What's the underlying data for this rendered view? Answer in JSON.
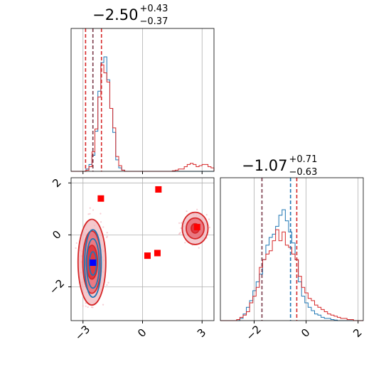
{
  "chart_data": [
    {
      "type": "histogram",
      "panel": "top-left",
      "title": {
        "main": "−2.50",
        "sup": "+0.43",
        "sub": "−0.37"
      },
      "xlim": [
        -3.6,
        3.6
      ],
      "grid": true,
      "colors": {
        "a": "#1f77b4",
        "b": "#d62728",
        "dashed_overlap": "#7a3a4a"
      },
      "quantile_lines": [
        -2.87,
        -2.5,
        -2.07
      ],
      "bins": {
        "start": -3.6,
        "width": 0.15
      },
      "series": [
        {
          "color_key": "a",
          "values": [
            0,
            0,
            0,
            0,
            0,
            0.02,
            0.06,
            0.14,
            0.35,
            0.7,
            0.95,
            1.0,
            0.8,
            0.55,
            0.34,
            0.1,
            0.03,
            0.01,
            0,
            0,
            0,
            0,
            0,
            0,
            0,
            0,
            0,
            0,
            0,
            0,
            0,
            0,
            0,
            0,
            0,
            0,
            0,
            0,
            0,
            0,
            0,
            0,
            0,
            0,
            0,
            0,
            0,
            0
          ]
        },
        {
          "color_key": "b",
          "values": [
            0,
            0,
            0,
            0,
            0,
            0.01,
            0.04,
            0.17,
            0.37,
            0.65,
            0.93,
            0.86,
            0.78,
            0.55,
            0.38,
            0.13,
            0.05,
            0.01,
            0,
            0,
            0,
            0,
            0,
            0,
            0,
            0,
            0,
            0,
            0,
            0,
            0,
            0,
            0,
            0,
            0.005,
            0.01,
            0.02,
            0.02,
            0.04,
            0.06,
            0.07,
            0.06,
            0.04,
            0.05,
            0.06,
            0.06,
            0.04,
            0.03
          ]
        }
      ]
    },
    {
      "type": "contour",
      "panel": "bottom-left",
      "xlim": [
        -3.6,
        3.6
      ],
      "ylim": [
        -3.3,
        2.2
      ],
      "x_ticks": [
        -3,
        0,
        3
      ],
      "x_tick_labels": [
        "−3",
        "0",
        "3"
      ],
      "y_ticks": [
        -2,
        0,
        2
      ],
      "y_tick_labels": [
        "−2",
        "0",
        "2"
      ],
      "grid": true,
      "blue_modes": [
        {
          "cx": -2.5,
          "cy": -1.1,
          "rx": [
            0.18,
            0.32,
            0.42
          ],
          "ry": [
            0.45,
            0.95,
            1.3
          ]
        }
      ],
      "red_modes": [
        {
          "cx": -2.55,
          "cy": -1.05,
          "rx": [
            0.28,
            0.46,
            0.7
          ],
          "ry": [
            0.65,
            1.2,
            1.65
          ]
        },
        {
          "cx": 2.65,
          "cy": 0.25,
          "rx": [
            0.2,
            0.45,
            0.65
          ],
          "ry": [
            0.18,
            0.4,
            0.62
          ]
        }
      ],
      "red_markers": [
        [
          -2.1,
          1.4
        ],
        [
          0.8,
          1.75
        ],
        [
          0.25,
          -0.8
        ],
        [
          0.75,
          -0.7
        ],
        [
          2.75,
          0.3
        ]
      ],
      "blue_markers": [
        [
          -2.5,
          -1.07
        ]
      ]
    },
    {
      "type": "histogram",
      "panel": "bottom-right",
      "title": {
        "main": "−1.07",
        "sup": "+0.71",
        "sub": "−0.63"
      },
      "xlim": [
        -3.3,
        2.2
      ],
      "x_ticks": [
        -2,
        0,
        2
      ],
      "x_tick_labels": [
        "−2",
        "0",
        "2"
      ],
      "grid": true,
      "quantile_lines": [
        {
          "x": -1.7,
          "color_key": "overlap"
        },
        {
          "x": -0.6,
          "color_key": "a"
        },
        {
          "x": -0.36,
          "color_key": "b"
        }
      ],
      "bins": {
        "start": -3.3,
        "width": 0.125
      },
      "series": [
        {
          "color_key": "a",
          "values": [
            0,
            0,
            0,
            0,
            0,
            0,
            0.02,
            0.06,
            0.12,
            0.18,
            0.27,
            0.35,
            0.42,
            0.55,
            0.68,
            0.75,
            0.78,
            0.85,
            0.95,
            1.0,
            0.9,
            0.8,
            0.7,
            0.55,
            0.35,
            0.22,
            0.16,
            0.12,
            0.09,
            0.06,
            0.05,
            0.03,
            0.02,
            0.02,
            0.01,
            0.005,
            0,
            0,
            0,
            0,
            0,
            0,
            0,
            0
          ]
        },
        {
          "color_key": "b",
          "values": [
            0,
            0,
            0,
            0,
            0,
            0.01,
            0.03,
            0.05,
            0.08,
            0.16,
            0.22,
            0.3,
            0.48,
            0.55,
            0.6,
            0.63,
            0.72,
            0.82,
            0.72,
            0.8,
            0.68,
            0.66,
            0.6,
            0.55,
            0.4,
            0.3,
            0.25,
            0.2,
            0.18,
            0.14,
            0.12,
            0.1,
            0.08,
            0.06,
            0.05,
            0.04,
            0.03,
            0.02,
            0.02,
            0.01,
            0.01,
            0,
            0,
            0
          ]
        }
      ]
    }
  ]
}
